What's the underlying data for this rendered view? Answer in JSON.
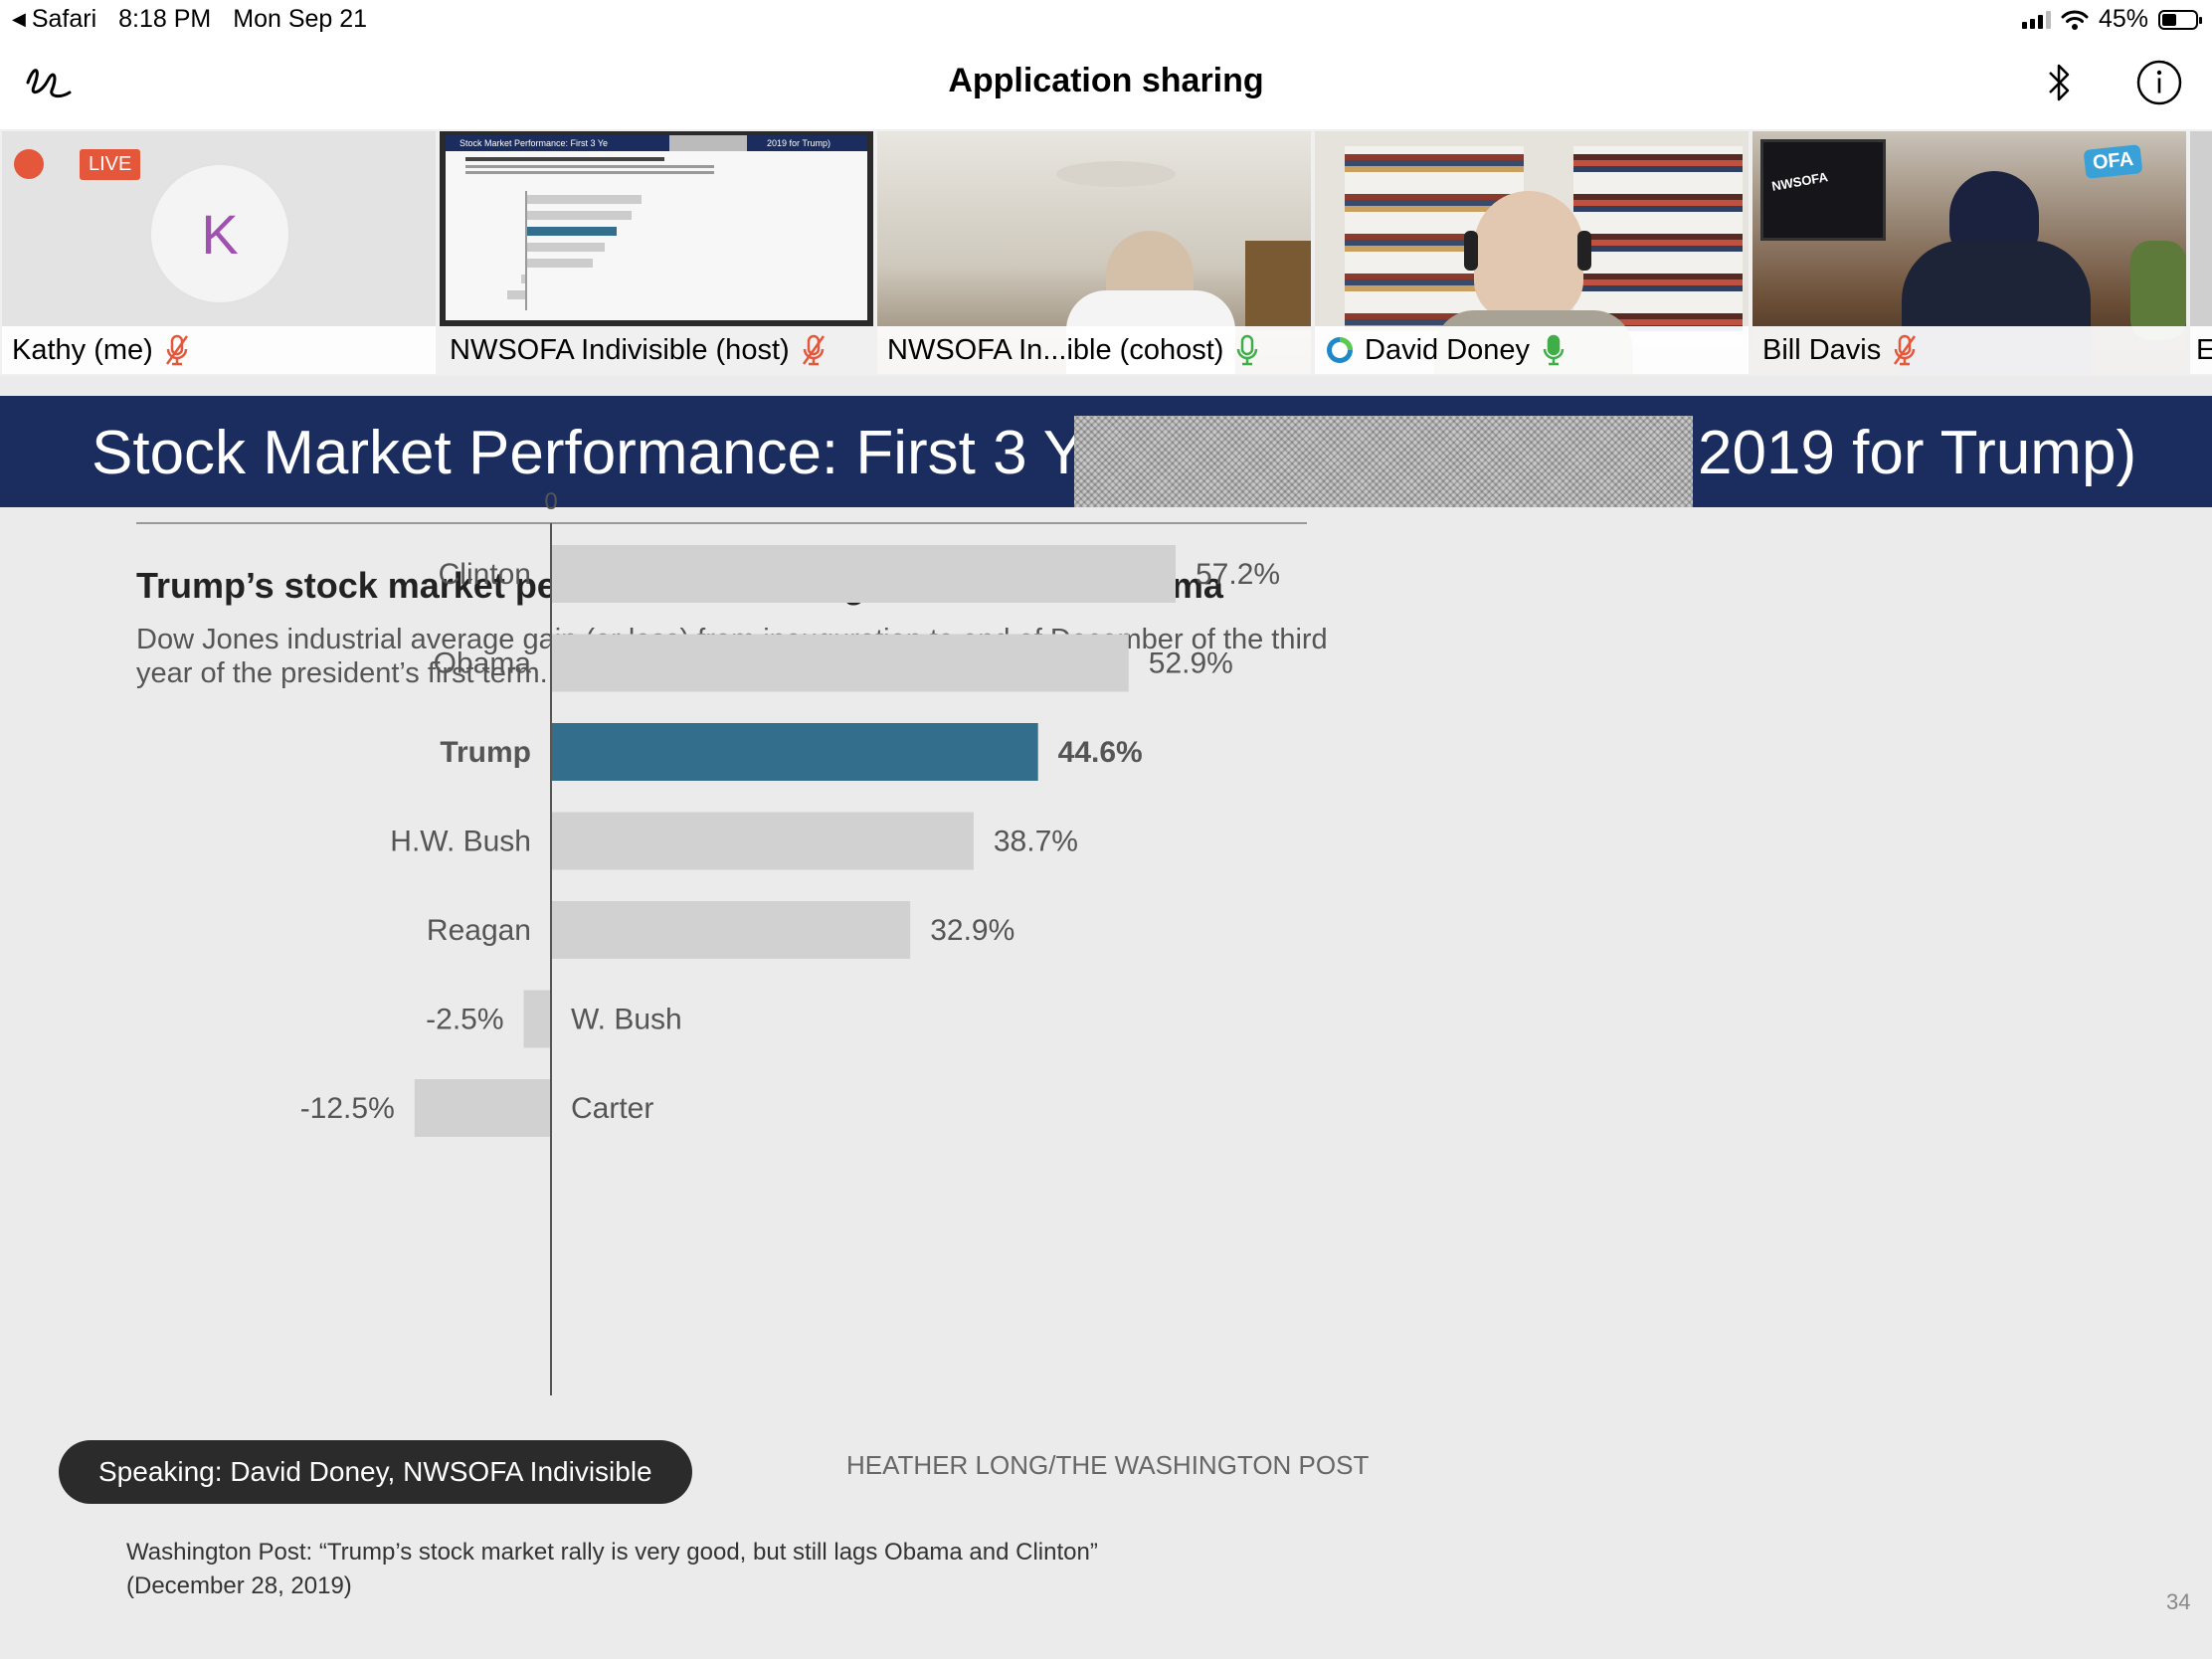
{
  "status_bar": {
    "back_app": "Safari",
    "time": "8:18 PM",
    "date": "Mon Sep 21",
    "battery": "45%",
    "battery_level": 0.45
  },
  "nav": {
    "title": "Application sharing",
    "left_icon": "annotate-squiggle-icon",
    "right_icons": [
      "bluetooth-icon",
      "info-icon"
    ]
  },
  "participants": [
    {
      "name": "Kathy (me)",
      "mic": "muted",
      "avatar_letter": "K",
      "badge": "LIVE"
    },
    {
      "name": "NWSOFA Indivisible (host)",
      "mic": "muted",
      "thumb_text": "Stock Market Performance:  First 3 Ye",
      "thumb_text_right": "2019 for Trump)"
    },
    {
      "name": "NWSOFA In...ible (cohost)",
      "mic": "on"
    },
    {
      "name": "David Doney",
      "mic": "on"
    },
    {
      "name": "Bill Davis",
      "mic": "muted",
      "thumb_text": "NWSOFA",
      "thumb_badge": "OFA"
    },
    {
      "name": "E",
      "mic": ""
    }
  ],
  "slide": {
    "banner_left": "Stock Market Performance:  First 3 Ye",
    "banner_right": "2019 for Trump)",
    "chart_title": "Trump’s stock market performance still lags Clinton and Obama",
    "chart_subtitle": "Dow Jones industrial average gain (or loss) from inauguration to end of December of the third year of the president’s first term.",
    "credit": "HEATHER LONG/THE WASHINGTON POST",
    "footnote_source": "Washington Post:",
    "footnote_quote": " “Trump’s stock market rally is very good, but still lags Obama and Clinton”",
    "footnote_date": "(December 28, 2019)",
    "page_number": "34"
  },
  "speaking_banner": "Speaking: David Doney, NWSOFA Indivisible",
  "colors": {
    "banner": "#1a2d5e",
    "highlight_bar": "#336e8c",
    "bar": "#d1d1d1",
    "muted_mic": "#e4573a",
    "active_mic": "#3fae49",
    "live_badge": "#e4573a"
  },
  "chart_data": {
    "type": "bar",
    "orientation": "horizontal",
    "zero_label": "0",
    "categories": [
      "Clinton",
      "Obama",
      "Trump",
      "H.W. Bush",
      "Reagan",
      "W. Bush",
      "Carter"
    ],
    "values": [
      57.2,
      52.9,
      44.6,
      38.7,
      32.9,
      -2.5,
      -12.5
    ],
    "labels": [
      "57.2%",
      "52.9%",
      "44.6%",
      "38.7%",
      "32.9%",
      "-2.5%",
      "-12.5%"
    ],
    "highlight": "Trump",
    "xlim": [
      -12.5,
      57.2
    ]
  }
}
